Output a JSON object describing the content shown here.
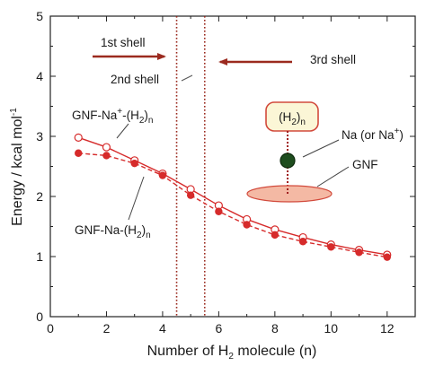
{
  "chart_data": {
    "type": "line",
    "xlabel": "Number of H",
    "xlabel_sub": "2",
    "xlabel_tail": " molecule (n)",
    "ylabel": "Energy / kcal mol",
    "ylabel_sup": "-1",
    "xlim": [
      0,
      13
    ],
    "ylim": [
      0,
      5
    ],
    "xticks": [
      0,
      2,
      4,
      6,
      8,
      10,
      12
    ],
    "yticks": [
      0,
      1,
      2,
      3,
      4,
      5
    ],
    "grid": false,
    "colors": {
      "series": "#d62b2b",
      "axis": "#222222",
      "label": "#1a1a1a"
    },
    "series": [
      {
        "name": "GNF-Na+-(H2)n",
        "style": "solid",
        "marker": "open-circle",
        "x": [
          1,
          2,
          3,
          4,
          5,
          6,
          7,
          8,
          9,
          10,
          11,
          12
        ],
        "values": [
          2.98,
          2.82,
          2.6,
          2.38,
          2.12,
          1.85,
          1.62,
          1.45,
          1.32,
          1.2,
          1.11,
          1.03
        ]
      },
      {
        "name": "GNF-Na-(H2)n",
        "style": "dashed",
        "marker": "filled-circle",
        "x": [
          1,
          2,
          3,
          4,
          5,
          6,
          7,
          8,
          9,
          10,
          11,
          12
        ],
        "values": [
          2.72,
          2.68,
          2.55,
          2.35,
          2.02,
          1.75,
          1.53,
          1.36,
          1.25,
          1.16,
          1.07,
          0.99
        ]
      }
    ],
    "shell_boundaries": [
      4.5,
      5.5
    ],
    "annotations": {
      "shell1": "1st shell",
      "shell2": "2nd shell",
      "shell3": "3rd shell",
      "curve1_base": "GNF-Na",
      "curve1_sup": "+",
      "curve1_tail": "-(H",
      "curve1_sub1": "2",
      "curve1_close": ")",
      "curve1_sub2": "n",
      "curve2_base": "GNF-Na-(H",
      "curve2_sub1": "2",
      "curve2_close": ")",
      "curve2_sub2": "n",
      "inset_h2_open": "(H",
      "inset_h2_sub1": "2",
      "inset_h2_close": ")",
      "inset_h2_sub2": "n",
      "inset_na_base": "Na (or Na",
      "inset_na_sup": "+",
      "inset_na_close": ")",
      "inset_gnf": "GNF"
    }
  }
}
